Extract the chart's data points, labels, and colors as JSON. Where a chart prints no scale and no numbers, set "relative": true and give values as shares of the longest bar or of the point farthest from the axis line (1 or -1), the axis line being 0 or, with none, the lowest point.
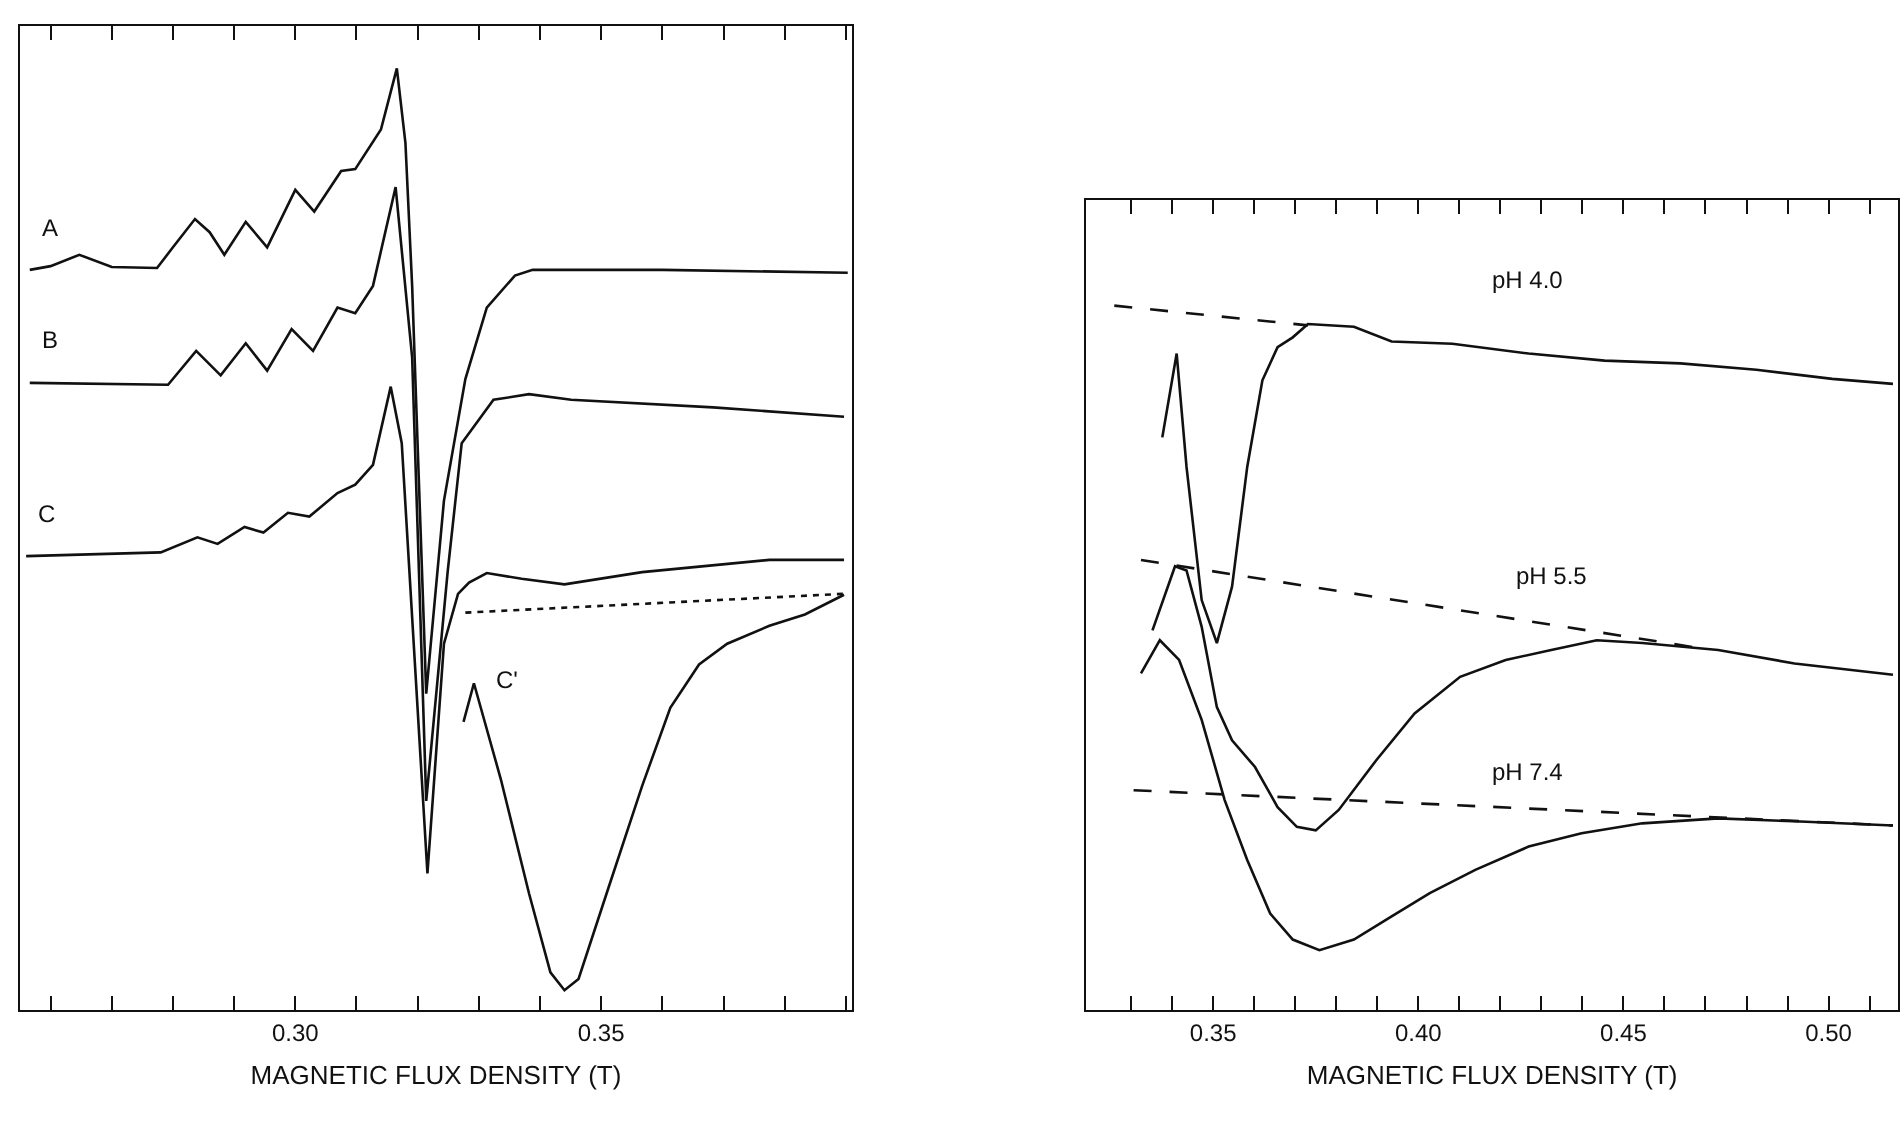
{
  "chart_data": [
    {
      "type": "line",
      "relative": true,
      "xlabel": "MAGNETIC FLUX DENSITY (T)",
      "xlim": [
        0.255,
        0.391
      ],
      "xticks": [
        {
          "value": 0.26,
          "label": null
        },
        {
          "value": 0.27,
          "label": null
        },
        {
          "value": 0.28,
          "label": null
        },
        {
          "value": 0.29,
          "label": null
        },
        {
          "value": 0.3,
          "label": "0.30"
        },
        {
          "value": 0.31,
          "label": null
        },
        {
          "value": 0.32,
          "label": null
        },
        {
          "value": 0.33,
          "label": null
        },
        {
          "value": 0.34,
          "label": null
        },
        {
          "value": 0.35,
          "label": "0.35"
        },
        {
          "value": 0.36,
          "label": null
        },
        {
          "value": 0.37,
          "label": null
        },
        {
          "value": 0.38,
          "label": null
        },
        {
          "value": 0.39,
          "label": null
        }
      ],
      "tick_labels": "x",
      "legend": false,
      "series": [
        {
          "name": "A",
          "color": "#111111",
          "line_style": "solid",
          "x": [
            0.2566,
            0.26,
            0.2647,
            0.27,
            0.2774,
            0.28,
            0.2836,
            0.286,
            0.2884,
            0.2919,
            0.2954,
            0.3,
            0.3031,
            0.3075,
            0.3098,
            0.314,
            0.3166,
            0.318,
            0.3191,
            0.3214,
            0.3243,
            0.3278,
            0.3313,
            0.3359,
            0.3388,
            0.36,
            0.3903
          ],
          "values": [
            0.786,
            0.79,
            0.802,
            0.789,
            0.788,
            0.81,
            0.84,
            0.826,
            0.802,
            0.837,
            0.81,
            0.871,
            0.848,
            0.891,
            0.893,
            0.935,
            1.0,
            0.921,
            0.769,
            0.336,
            0.541,
            0.67,
            0.746,
            0.78,
            0.786,
            0.786,
            0.783
          ]
        },
        {
          "name": "B",
          "color": "#111111",
          "line_style": "solid",
          "x": [
            0.2566,
            0.2792,
            0.2838,
            0.2878,
            0.2919,
            0.2954,
            0.2994,
            0.3029,
            0.3069,
            0.3098,
            0.3127,
            0.3164,
            0.3191,
            0.3214,
            0.3249,
            0.3272,
            0.3289,
            0.3324,
            0.3382,
            0.3451,
            0.3683,
            0.3897
          ],
          "values": [
            0.666,
            0.664,
            0.7,
            0.674,
            0.708,
            0.679,
            0.723,
            0.7,
            0.746,
            0.74,
            0.769,
            0.874,
            0.693,
            0.222,
            0.465,
            0.602,
            0.617,
            0.648,
            0.654,
            0.648,
            0.64,
            0.63
          ]
        },
        {
          "name": "C",
          "color": "#111111",
          "line_style": "solid",
          "x": [
            0.256,
            0.278,
            0.284,
            0.2873,
            0.2917,
            0.2948,
            0.2988,
            0.3023,
            0.3069,
            0.3098,
            0.3127,
            0.3156,
            0.3174,
            0.3216,
            0.3243,
            0.3266,
            0.3284,
            0.3313,
            0.337,
            0.344,
            0.3567,
            0.3775,
            0.3897
          ],
          "values": [
            0.482,
            0.486,
            0.502,
            0.495,
            0.513,
            0.507,
            0.528,
            0.524,
            0.549,
            0.558,
            0.579,
            0.662,
            0.602,
            0.145,
            0.389,
            0.442,
            0.454,
            0.464,
            0.458,
            0.452,
            0.465,
            0.478,
            0.478
          ]
        },
        {
          "name": "C'",
          "color": "#111111",
          "line_style": "solid",
          "x": [
            0.3275,
            0.3292,
            0.3336,
            0.3382,
            0.3417,
            0.344,
            0.3463,
            0.3509,
            0.3567,
            0.3613,
            0.366,
            0.3706,
            0.3775,
            0.3833,
            0.3897
          ],
          "values": [
            0.306,
            0.347,
            0.245,
            0.124,
            0.04,
            0.021,
            0.033,
            0.124,
            0.238,
            0.321,
            0.367,
            0.389,
            0.408,
            0.42,
            0.441
          ]
        },
        {
          "color": "#111111",
          "line_style": "dotted",
          "x": [
            0.3278,
            0.3897
          ],
          "values": [
            0.422,
            0.442
          ]
        }
      ]
    },
    {
      "type": "line",
      "relative": true,
      "xlabel": "MAGNETIC FLUX DENSITY (T)",
      "xlim": [
        0.319,
        0.517
      ],
      "xticks": [
        {
          "value": 0.33,
          "label": null
        },
        {
          "value": 0.34,
          "label": null
        },
        {
          "value": 0.35,
          "label": "0.35"
        },
        {
          "value": 0.36,
          "label": null
        },
        {
          "value": 0.37,
          "label": null
        },
        {
          "value": 0.38,
          "label": null
        },
        {
          "value": 0.39,
          "label": null
        },
        {
          "value": 0.4,
          "label": "0.40"
        },
        {
          "value": 0.41,
          "label": null
        },
        {
          "value": 0.42,
          "label": null
        },
        {
          "value": 0.43,
          "label": null
        },
        {
          "value": 0.44,
          "label": null
        },
        {
          "value": 0.45,
          "label": "0.45"
        },
        {
          "value": 0.46,
          "label": null
        },
        {
          "value": 0.47,
          "label": null
        },
        {
          "value": 0.48,
          "label": null
        },
        {
          "value": 0.49,
          "label": null
        },
        {
          "value": 0.5,
          "label": "0.50"
        },
        {
          "value": 0.51,
          "label": null
        }
      ],
      "tick_labels": "x",
      "legend": false,
      "series": [
        {
          "name": "pH 4.0",
          "color": "#111111",
          "line_style": "solid",
          "x": [
            0.3376,
            0.3411,
            0.3435,
            0.3472,
            0.3509,
            0.3546,
            0.3583,
            0.362,
            0.3657,
            0.3694,
            0.3731,
            0.3843,
            0.3935,
            0.4083,
            0.4269,
            0.4454,
            0.4639,
            0.4824,
            0.5009,
            0.5157
          ],
          "values": [
            0.813,
            0.932,
            0.771,
            0.582,
            0.521,
            0.601,
            0.771,
            0.894,
            0.941,
            0.955,
            0.974,
            0.97,
            0.949,
            0.946,
            0.932,
            0.922,
            0.918,
            0.909,
            0.896,
            0.889
          ]
        },
        {
          "color": "#111111",
          "line_style": "dashed",
          "x": [
            0.3259,
            0.3731
          ],
          "values": [
            1.0,
            0.972
          ]
        },
        {
          "name": "pH 5.5",
          "color": "#111111",
          "line_style": "solid",
          "x": [
            0.3352,
            0.3407,
            0.3435,
            0.3472,
            0.3509,
            0.3546,
            0.3602,
            0.3657,
            0.3704,
            0.375,
            0.3806,
            0.3898,
            0.3991,
            0.4102,
            0.4213,
            0.4324,
            0.4435,
            0.4546,
            0.4731,
            0.4917,
            0.5157
          ],
          "values": [
            0.539,
            0.63,
            0.624,
            0.544,
            0.43,
            0.383,
            0.345,
            0.288,
            0.26,
            0.255,
            0.284,
            0.355,
            0.421,
            0.473,
            0.497,
            0.511,
            0.525,
            0.521,
            0.511,
            0.492,
            0.476
          ]
        },
        {
          "color": "#111111",
          "line_style": "dashed",
          "x": [
            0.3324,
            0.4694
          ],
          "values": [
            0.639,
            0.513
          ]
        },
        {
          "name": "pH 7.4",
          "color": "#111111",
          "line_style": "solid",
          "x": [
            0.3324,
            0.337,
            0.3417,
            0.3472,
            0.3528,
            0.3583,
            0.3639,
            0.3694,
            0.3759,
            0.3843,
            0.3935,
            0.4028,
            0.4139,
            0.4269,
            0.4398,
            0.4546,
            0.4731,
            0.4917,
            0.5157
          ],
          "values": [
            0.478,
            0.525,
            0.497,
            0.412,
            0.298,
            0.213,
            0.137,
            0.1,
            0.085,
            0.1,
            0.133,
            0.166,
            0.199,
            0.232,
            0.251,
            0.265,
            0.272,
            0.268,
            0.262
          ]
        },
        {
          "color": "#111111",
          "line_style": "dashed",
          "x": [
            0.3306,
            0.5157
          ],
          "values": [
            0.312,
            0.262
          ]
        }
      ]
    }
  ]
}
